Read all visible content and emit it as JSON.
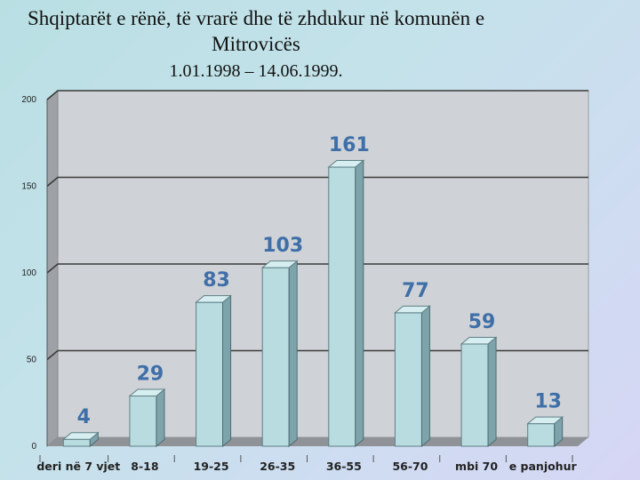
{
  "title": "Shqiptarët e rënë, të vrarë dhe të zhdukur në komunën e Mitrovicës",
  "subtitle": "1.01.1998 – 14.06.1999.",
  "colors": {
    "bar_front": "#b8dce0",
    "bar_side": "#7da3ab",
    "bar_top": "#d7eef0",
    "data_label": "#3f6fa8",
    "wall": "#cfd2d6",
    "gridline": "#3a3a3a"
  },
  "chart_data": {
    "type": "bar",
    "title": "Shqiptarët e rënë, të vrarë dhe të zhdukur në komunën e Mitrovicës",
    "subtitle": "1.01.1998 – 14.06.1999.",
    "categories": [
      "deri në 7 vjet",
      "8-18",
      "19-25",
      "26-35",
      "36-55",
      "56-70",
      "mbi 70",
      "e panjohur"
    ],
    "values": [
      4,
      29,
      83,
      103,
      161,
      77,
      59,
      13
    ],
    "data_labels": [
      "4",
      "29",
      "83",
      "103",
      "161",
      "77",
      "59",
      "13"
    ],
    "y_ticks": [
      "0",
      "50",
      "100",
      "150",
      "200"
    ],
    "ylim": [
      0,
      200
    ],
    "grid": true,
    "legend": false
  }
}
